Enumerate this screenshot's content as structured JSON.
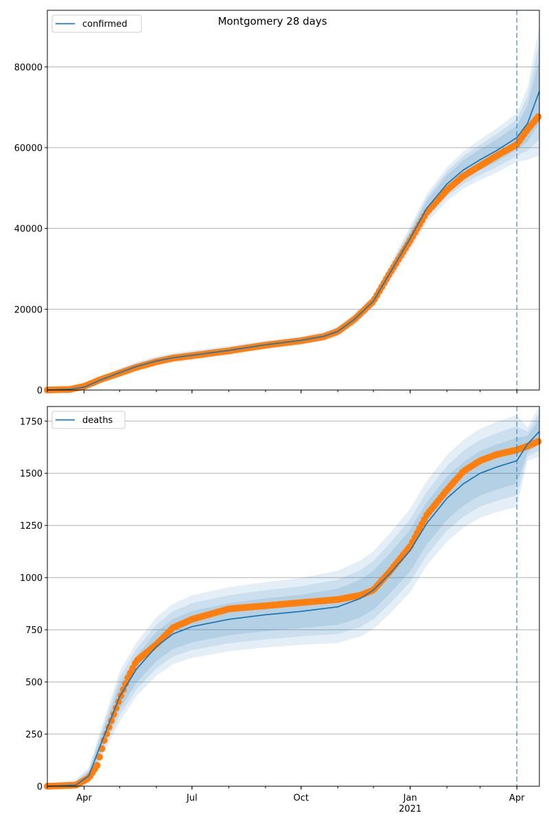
{
  "title": "Montgomery 28 days",
  "colors": {
    "model_line": "#1f77b4",
    "observed": "#ff7f0e",
    "band": "#1f77b4",
    "grid": "#b0b0b0",
    "forecast_marker": "#1f77b4"
  },
  "x_axis": {
    "start": "2020-03-01",
    "end": "2021-04-20",
    "ticks": [
      {
        "date": "2020-04-01",
        "label": "Apr",
        "sublabel": ""
      },
      {
        "date": "2020-07-01",
        "label": "Jul",
        "sublabel": ""
      },
      {
        "date": "2020-10-01",
        "label": "Oct",
        "sublabel": ""
      },
      {
        "date": "2021-01-01",
        "label": "Jan",
        "sublabel": "2021"
      },
      {
        "date": "2021-04-01",
        "label": "Apr",
        "sublabel": ""
      }
    ],
    "forecast_start": "2021-04-01"
  },
  "chart_data": [
    {
      "type": "line",
      "name": "confirmed",
      "legend": "confirmed",
      "legend_position": "upper-left",
      "grid": "horizontal",
      "ylim": [
        0,
        94000
      ],
      "yticks": [
        0,
        20000,
        40000,
        60000,
        80000
      ],
      "model_mean": [
        {
          "x": "2020-03-01",
          "y": 0
        },
        {
          "x": "2020-03-20",
          "y": 200
        },
        {
          "x": "2020-04-01",
          "y": 700
        },
        {
          "x": "2020-04-15",
          "y": 2500
        },
        {
          "x": "2020-05-01",
          "y": 4300
        },
        {
          "x": "2020-05-15",
          "y": 5800
        },
        {
          "x": "2020-06-01",
          "y": 7200
        },
        {
          "x": "2020-06-15",
          "y": 8000
        },
        {
          "x": "2020-07-01",
          "y": 8600
        },
        {
          "x": "2020-08-01",
          "y": 9800
        },
        {
          "x": "2020-09-01",
          "y": 11200
        },
        {
          "x": "2020-10-01",
          "y": 12300
        },
        {
          "x": "2020-10-20",
          "y": 13300
        },
        {
          "x": "2020-11-01",
          "y": 14500
        },
        {
          "x": "2020-11-15",
          "y": 17500
        },
        {
          "x": "2020-12-01",
          "y": 22000
        },
        {
          "x": "2020-12-15",
          "y": 29000
        },
        {
          "x": "2021-01-01",
          "y": 37500
        },
        {
          "x": "2021-01-15",
          "y": 45000
        },
        {
          "x": "2021-02-01",
          "y": 51000
        },
        {
          "x": "2021-02-15",
          "y": 54500
        },
        {
          "x": "2021-03-01",
          "y": 57000
        },
        {
          "x": "2021-03-15",
          "y": 59300
        },
        {
          "x": "2021-04-01",
          "y": 62500
        },
        {
          "x": "2021-04-10",
          "y": 66000
        },
        {
          "x": "2021-04-20",
          "y": 74000
        }
      ],
      "band_spread": [
        {
          "x": "2020-03-01",
          "inner": 0,
          "outer": 0
        },
        {
          "x": "2020-04-01",
          "inner": 200,
          "outer": 400
        },
        {
          "x": "2020-05-01",
          "inner": 600,
          "outer": 1100
        },
        {
          "x": "2020-07-01",
          "inner": 600,
          "outer": 1200
        },
        {
          "x": "2020-10-01",
          "inner": 500,
          "outer": 1000
        },
        {
          "x": "2020-12-01",
          "inner": 800,
          "outer": 1600
        },
        {
          "x": "2021-01-01",
          "inner": 1600,
          "outer": 3000
        },
        {
          "x": "2021-02-01",
          "inner": 2200,
          "outer": 4200
        },
        {
          "x": "2021-03-01",
          "inner": 2600,
          "outer": 5000
        },
        {
          "x": "2021-04-01",
          "inner": 3000,
          "outer": 6000
        },
        {
          "x": "2021-04-10",
          "inner": 4500,
          "outer": 9000
        },
        {
          "x": "2021-04-20",
          "inner": 8000,
          "outer": 16000
        }
      ],
      "observed": [
        {
          "x": "2020-03-01",
          "y": 0
        },
        {
          "x": "2020-03-20",
          "y": 150
        },
        {
          "x": "2020-04-01",
          "y": 900
        },
        {
          "x": "2020-04-15",
          "y": 2600
        },
        {
          "x": "2020-05-01",
          "y": 4200
        },
        {
          "x": "2020-05-15",
          "y": 5600
        },
        {
          "x": "2020-06-01",
          "y": 7000
        },
        {
          "x": "2020-06-15",
          "y": 7900
        },
        {
          "x": "2020-07-01",
          "y": 8500
        },
        {
          "x": "2020-08-01",
          "y": 9700
        },
        {
          "x": "2020-09-01",
          "y": 11100
        },
        {
          "x": "2020-10-01",
          "y": 12200
        },
        {
          "x": "2020-10-20",
          "y": 13200
        },
        {
          "x": "2020-11-01",
          "y": 14500
        },
        {
          "x": "2020-11-15",
          "y": 17500
        },
        {
          "x": "2020-12-01",
          "y": 22000
        },
        {
          "x": "2020-12-15",
          "y": 29000
        },
        {
          "x": "2021-01-01",
          "y": 37000
        },
        {
          "x": "2021-01-15",
          "y": 44000
        },
        {
          "x": "2021-02-01",
          "y": 49500
        },
        {
          "x": "2021-02-15",
          "y": 53000
        },
        {
          "x": "2021-03-01",
          "y": 55500
        },
        {
          "x": "2021-03-15",
          "y": 58000
        },
        {
          "x": "2021-04-01",
          "y": 60800
        },
        {
          "x": "2021-04-10",
          "y": 64500
        },
        {
          "x": "2021-04-20",
          "y": 68000
        }
      ]
    },
    {
      "type": "line",
      "name": "deaths",
      "legend": "deaths",
      "legend_position": "upper-left",
      "grid": "horizontal",
      "ylim": [
        0,
        1820
      ],
      "yticks": [
        0,
        250,
        500,
        750,
        1000,
        1250,
        1500,
        1750
      ],
      "model_mean": [
        {
          "x": "2020-03-01",
          "y": 0
        },
        {
          "x": "2020-03-25",
          "y": 5
        },
        {
          "x": "2020-04-05",
          "y": 50
        },
        {
          "x": "2020-04-15",
          "y": 200
        },
        {
          "x": "2020-05-01",
          "y": 430
        },
        {
          "x": "2020-05-15",
          "y": 560
        },
        {
          "x": "2020-06-01",
          "y": 670
        },
        {
          "x": "2020-06-15",
          "y": 730
        },
        {
          "x": "2020-07-01",
          "y": 765
        },
        {
          "x": "2020-08-01",
          "y": 800
        },
        {
          "x": "2020-09-01",
          "y": 822
        },
        {
          "x": "2020-10-01",
          "y": 838
        },
        {
          "x": "2020-11-01",
          "y": 860
        },
        {
          "x": "2020-11-20",
          "y": 900
        },
        {
          "x": "2020-12-01",
          "y": 940
        },
        {
          "x": "2020-12-15",
          "y": 1020
        },
        {
          "x": "2021-01-01",
          "y": 1130
        },
        {
          "x": "2021-01-15",
          "y": 1260
        },
        {
          "x": "2021-02-01",
          "y": 1380
        },
        {
          "x": "2021-02-15",
          "y": 1450
        },
        {
          "x": "2021-03-01",
          "y": 1500
        },
        {
          "x": "2021-03-15",
          "y": 1530
        },
        {
          "x": "2021-04-01",
          "y": 1560
        },
        {
          "x": "2021-04-10",
          "y": 1640
        },
        {
          "x": "2021-04-20",
          "y": 1700
        }
      ],
      "band_spread": [
        {
          "x": "2020-03-01",
          "inner": 0,
          "outer": 0
        },
        {
          "x": "2020-04-05",
          "inner": 20,
          "outer": 40
        },
        {
          "x": "2020-05-01",
          "inner": 60,
          "outer": 120
        },
        {
          "x": "2020-06-01",
          "inner": 70,
          "outer": 140
        },
        {
          "x": "2020-07-01",
          "inner": 75,
          "outer": 150
        },
        {
          "x": "2020-10-01",
          "inner": 80,
          "outer": 160
        },
        {
          "x": "2021-01-01",
          "inner": 100,
          "outer": 200
        },
        {
          "x": "2021-04-01",
          "inner": 110,
          "outer": 220
        },
        {
          "x": "2021-04-10",
          "inner": 40,
          "outer": 80
        },
        {
          "x": "2021-04-20",
          "inner": 60,
          "outer": 120
        }
      ],
      "observed": [
        {
          "x": "2020-03-01",
          "y": 0
        },
        {
          "x": "2020-03-25",
          "y": 5
        },
        {
          "x": "2020-04-05",
          "y": 40
        },
        {
          "x": "2020-04-12",
          "y": 100
        },
        {
          "x": "2020-04-18",
          "y": 220
        },
        {
          "x": "2020-04-25",
          "y": 330
        },
        {
          "x": "2020-05-01",
          "y": 420
        },
        {
          "x": "2020-05-08",
          "y": 520
        },
        {
          "x": "2020-05-15",
          "y": 600
        },
        {
          "x": "2020-06-01",
          "y": 680
        },
        {
          "x": "2020-06-15",
          "y": 760
        },
        {
          "x": "2020-07-01",
          "y": 800
        },
        {
          "x": "2020-08-01",
          "y": 850
        },
        {
          "x": "2020-09-01",
          "y": 865
        },
        {
          "x": "2020-10-01",
          "y": 880
        },
        {
          "x": "2020-11-01",
          "y": 895
        },
        {
          "x": "2020-11-20",
          "y": 915
        },
        {
          "x": "2020-12-01",
          "y": 940
        },
        {
          "x": "2020-12-15",
          "y": 1030
        },
        {
          "x": "2021-01-01",
          "y": 1150
        },
        {
          "x": "2021-01-15",
          "y": 1300
        },
        {
          "x": "2021-02-01",
          "y": 1420
        },
        {
          "x": "2021-02-15",
          "y": 1510
        },
        {
          "x": "2021-03-01",
          "y": 1560
        },
        {
          "x": "2021-03-15",
          "y": 1590
        },
        {
          "x": "2021-04-01",
          "y": 1612
        },
        {
          "x": "2021-04-10",
          "y": 1630
        },
        {
          "x": "2021-04-20",
          "y": 1655
        }
      ]
    }
  ]
}
